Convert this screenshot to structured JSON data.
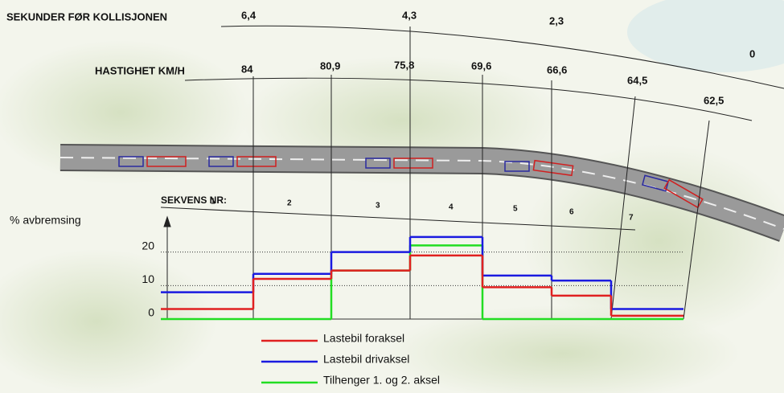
{
  "labels": {
    "seconds_title": "SEKUNDER FØR KOLLISJONEN",
    "speed_title": "HASTIGHET KM/H",
    "sequence_title": "SEKVENS NR:"
  },
  "seconds": [
    "6,4",
    "4,3",
    "2,3",
    "0"
  ],
  "speeds": [
    "84",
    "80,9",
    "75,8",
    "69,6",
    "66,6",
    "64,5",
    "62,5"
  ],
  "chart_data": {
    "type": "step",
    "y_label": "% avbremsing",
    "categories": [
      "1",
      "2",
      "3",
      "4",
      "5",
      "6",
      "7"
    ],
    "series": [
      {
        "name": "Lastebil foraksel",
        "color": "#e02020",
        "values": [
          3,
          12,
          14.5,
          19,
          9.5,
          7,
          1
        ]
      },
      {
        "name": "Lastebil drivaksel",
        "color": "#1a1ae0",
        "values": [
          8,
          13.5,
          20,
          24.5,
          13,
          11.5,
          3
        ]
      },
      {
        "name": "Tilhenger 1. og 2. aksel",
        "color": "#22dd22",
        "values": [
          0,
          0,
          14.5,
          22,
          0,
          0,
          0
        ]
      }
    ],
    "ylim": [
      0,
      30
    ],
    "yticks": [
      0,
      10,
      20
    ],
    "grid": true
  }
}
